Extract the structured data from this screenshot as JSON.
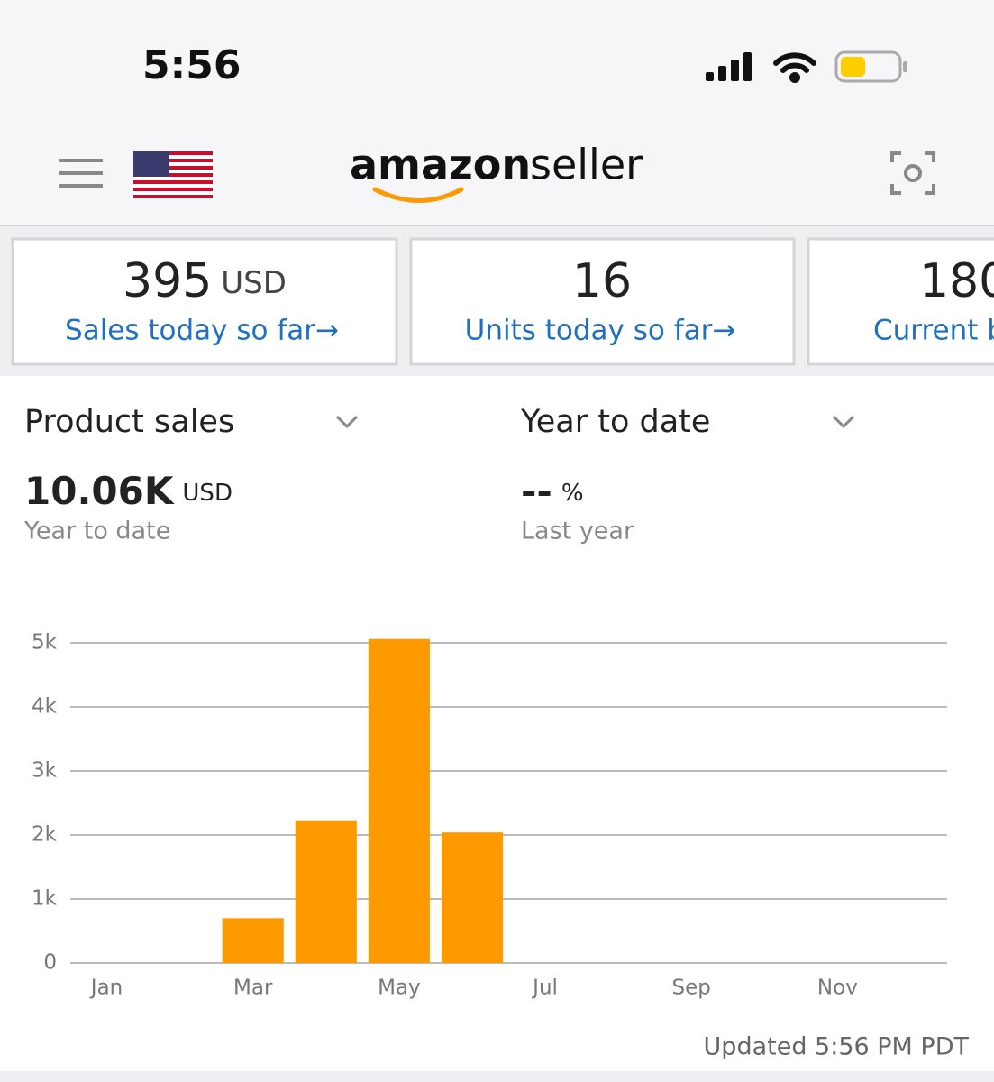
{
  "status_bar": {
    "time": "5:56"
  },
  "header": {
    "logo_brand": "amazon",
    "logo_product": "seller"
  },
  "cards": [
    {
      "value": "395",
      "unit": "USD",
      "link": "Sales today so far→"
    },
    {
      "value": "16",
      "link": "Units today so far→"
    },
    {
      "value": "180",
      "link": "Current b"
    }
  ],
  "selectors": {
    "metric": "Product sales",
    "period": "Year to date"
  },
  "summary": {
    "value": "10.06K",
    "unit": "USD",
    "caption": "Year to date",
    "change": "--",
    "change_unit": "%",
    "change_caption": "Last year"
  },
  "chart_data": {
    "type": "bar",
    "categories": [
      "Jan",
      null,
      "Mar",
      null,
      "May",
      null,
      "Jul",
      null,
      "Sep",
      null,
      "Nov",
      null
    ],
    "values": [
      0,
      0,
      700,
      2230,
      5060,
      2040,
      null,
      null,
      null,
      null,
      null,
      null
    ],
    "color": "#ff9900",
    "ylim": [
      0,
      5000
    ],
    "yticks": [
      0,
      {
        "value": 1000,
        "label": "1k"
      },
      {
        "value": 2000,
        "label": "2k"
      },
      {
        "value": 3000,
        "label": "3k"
      },
      {
        "value": 4000,
        "label": "4k"
      },
      {
        "value": 5000,
        "label": "5k"
      }
    ],
    "grid": true
  },
  "footer": {
    "updated": "Updated 5:56 PM PDT"
  }
}
